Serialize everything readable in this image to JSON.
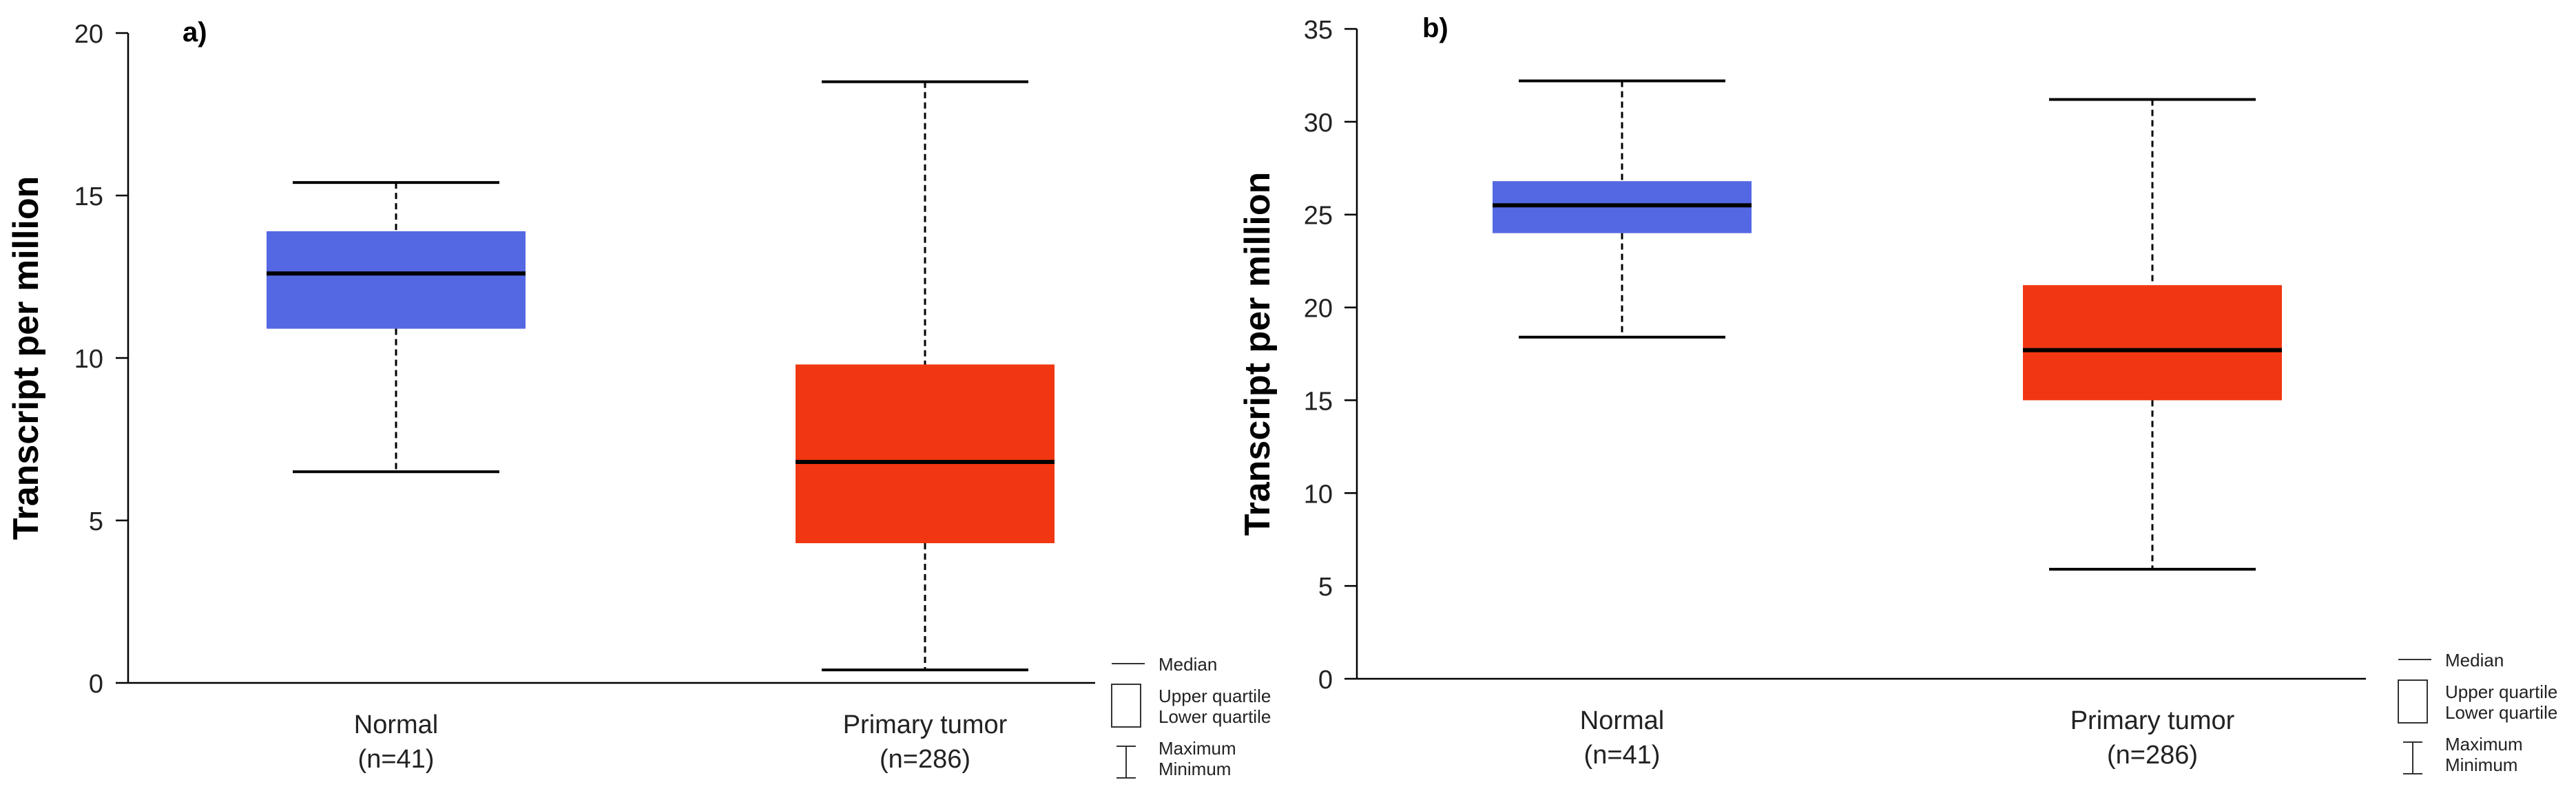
{
  "colors": {
    "normal": "#5568E3",
    "tumor": "#F03712",
    "line": "#000000"
  },
  "legend": {
    "median": "Median",
    "upper_quartile": "Upper quartile",
    "lower_quartile": "Lower quartile",
    "maximum": "Maximum",
    "minimum": "Minimum"
  },
  "chart_data": [
    {
      "type": "box",
      "panel_label": "a)",
      "ylabel": "Transcript per million",
      "ylim": [
        0,
        20
      ],
      "yticks": [
        0,
        5,
        10,
        15,
        20
      ],
      "categories": [
        {
          "name": "Normal",
          "n": "(n=41)",
          "color": "#5568E3",
          "min": 6.5,
          "q1": 10.9,
          "median": 12.6,
          "q3": 13.9,
          "max": 15.4
        },
        {
          "name": "Primary tumor",
          "n": "(n=286)",
          "color": "#F03712",
          "min": 0.4,
          "q1": 4.3,
          "median": 6.8,
          "q3": 9.8,
          "max": 18.5
        }
      ]
    },
    {
      "type": "box",
      "panel_label": "b)",
      "ylabel": "Transcript per million",
      "ylim": [
        0,
        35
      ],
      "yticks": [
        0,
        5,
        10,
        15,
        20,
        25,
        30,
        35
      ],
      "categories": [
        {
          "name": "Normal",
          "n": "(n=41)",
          "color": "#5568E3",
          "min": 18.4,
          "q1": 24.0,
          "median": 25.5,
          "q3": 26.8,
          "max": 32.2
        },
        {
          "name": "Primary tumor",
          "n": "(n=286)",
          "color": "#F03712",
          "min": 5.9,
          "q1": 15.0,
          "median": 17.7,
          "q3": 21.2,
          "max": 31.2
        }
      ]
    }
  ]
}
